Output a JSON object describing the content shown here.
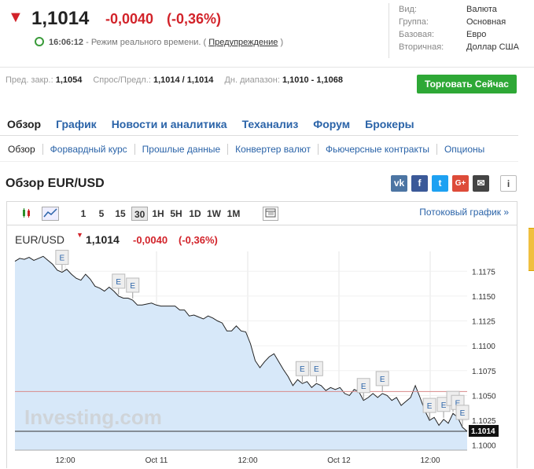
{
  "quote": {
    "arrow": "▼",
    "price": "1,1014",
    "change": "-0,0040",
    "change_pct": "(-0,36%)",
    "color_down": "#d2232a"
  },
  "status": {
    "time": "16:06:12",
    "mode": "- Режим реального времени. (",
    "warning_link": "Предупреждение",
    "close_paren": ")"
  },
  "info": {
    "rows": [
      {
        "label": "Вид:",
        "value": "Валюта"
      },
      {
        "label": "Группа:",
        "value": "Основная"
      },
      {
        "label": "Базовая:",
        "value": "Евро"
      },
      {
        "label": "Вторичная:",
        "value": "Доллар США"
      }
    ]
  },
  "stats": {
    "prev_close_label": "Пред. закр.:",
    "prev_close": "1,1054",
    "bid_ask_label": "Спрос/Предл.:",
    "bid_ask": "1,1014 / 1,1014",
    "day_range_label": "Дн. диапазон:",
    "day_range": "1,1010 - 1,1068"
  },
  "trade_button": "Торговать Сейчас",
  "main_tabs": [
    "Обзор",
    "График",
    "Новости и аналитика",
    "Теханализ",
    "Форум",
    "Брокеры"
  ],
  "sub_tabs": [
    "Обзор",
    "Форвардный курс",
    "Прошлые данные",
    "Конвертер валют",
    "Фьючерсные контракты",
    "Опционы"
  ],
  "section_title": "Обзор EUR/USD",
  "share_icons": [
    "vk-icon",
    "facebook-icon",
    "twitter-icon",
    "googleplus-icon",
    "email-icon",
    "info-icon"
  ],
  "toolbar": {
    "intervals": [
      "1",
      "5",
      "15",
      "30",
      "1H",
      "5H",
      "1D",
      "1W",
      "1M"
    ],
    "active_interval": "30",
    "stream_link": "Потоковый график »"
  },
  "chart_header": {
    "symbol": "EUR/USD",
    "price": "1,1014",
    "change": "-0,0040",
    "change_pct": "(-0,36%)"
  },
  "watermark": "Investing.com",
  "chart_data": {
    "type": "area",
    "y_ticks": [
      "1.1175",
      "1.1150",
      "1.1125",
      "1.1100",
      "1.1075",
      "1.1050",
      "1.1025",
      "1.1000"
    ],
    "x_ticks": [
      "12:00",
      "Oct 11",
      "12:00",
      "Oct 12",
      "12:00"
    ],
    "ylim": [
      1.0995,
      1.1195
    ],
    "current_label": "1.1014",
    "prev_close_line": 1.1054,
    "current_line": 1.1014,
    "series": [
      {
        "values": [
          1.1185,
          1.1188,
          1.1187,
          1.1189,
          1.1186,
          1.1188,
          1.119,
          1.1186,
          1.1182,
          1.1176,
          1.1174,
          1.1177,
          1.1172,
          1.1168,
          1.1166,
          1.1172,
          1.1167,
          1.116,
          1.1158,
          1.1155,
          1.1159,
          1.1155,
          1.115,
          1.1148,
          1.1148,
          1.1146,
          1.1141,
          1.1141,
          1.1142,
          1.1143,
          1.1141,
          1.114,
          1.114,
          1.114,
          1.114,
          1.1136,
          1.1136,
          1.113,
          1.1131,
          1.1129,
          1.1127,
          1.113,
          1.1128,
          1.1125,
          1.1123,
          1.1115,
          1.1115,
          1.112,
          1.1115,
          1.1114,
          1.1102,
          1.1085,
          1.1078,
          1.1084,
          1.1089,
          1.1092,
          1.1084,
          1.1076,
          1.1069,
          1.106,
          1.1066,
          1.1062,
          1.1064,
          1.1058,
          1.1062,
          1.106,
          1.1055,
          1.1058,
          1.1056,
          1.1058,
          1.1052,
          1.105,
          1.1056,
          1.1054,
          1.1045,
          1.1048,
          1.1052,
          1.1048,
          1.1052,
          1.105,
          1.1045,
          1.1048,
          1.104,
          1.1044,
          1.1048,
          1.106,
          1.1048,
          1.1035,
          1.1025,
          1.1028,
          1.102,
          1.1026,
          1.1022,
          1.1032,
          1.1028,
          1.1018,
          1.1014
        ]
      }
    ],
    "event_markers": [
      "E",
      "E",
      "E",
      "E",
      "E",
      "E",
      "E",
      "E",
      "E",
      "E",
      "E",
      "E"
    ]
  }
}
